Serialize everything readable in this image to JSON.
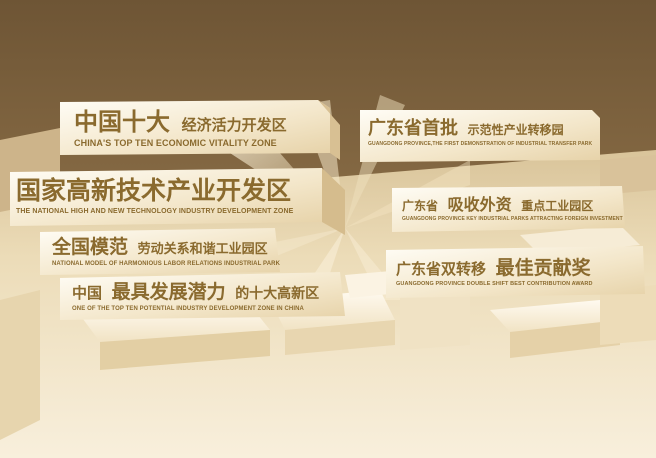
{
  "signs": [
    {
      "cn_big": "中国十大",
      "cn_small": "经济活力开发区",
      "en": "CHINA'S TOP TEN ECONOMIC VITALITY ZONE"
    },
    {
      "cn_big": "国家高新技术产业开发区",
      "cn_small": "",
      "en": "THE NATIONAL HIGH AND NEW TECHNOLOGY INDUSTRY DEVELOPMENT ZONE"
    },
    {
      "cn_big": "全国模范",
      "cn_small": "劳动关系和谐工业园区",
      "en": "NATIONAL MODEL OF HARMONIOUS LABOR RELATIONS INDUSTRIAL PARK"
    },
    {
      "cn_pre": "中国",
      "cn_big": "最具发展潜力",
      "cn_small": "的十大高新区",
      "en": "ONE OF THE TOP TEN POTENTIAL INDUSTRY DEVELOPMENT ZONE IN CHINA"
    },
    {
      "cn_big": "广东省首批",
      "cn_small": "示范性产业转移园",
      "en": "GUANGDONG PROVINCE,THE FIRST DEMONSTRATION OF INDUSTRIAL TRANSFER PARK"
    },
    {
      "cn_pre": "广东省",
      "cn_big": "吸收外资",
      "cn_small": "重点工业园区",
      "en": "GUANGDONG PROVINCE KEY INDUSTRIAL PARKS ATTRACTING FOREIGN INVESTMENT"
    },
    {
      "cn_pre": "广东省双转移",
      "cn_big": "最佳贡献奖",
      "cn_small": "",
      "en": "GUANGDONG PROVINCE DOUBLE SHIFT BEST CONTRIBUTION AWARD"
    }
  ],
  "colors": {
    "background_top": "#7a6240",
    "floor": "#efe2c4",
    "text": "#8a6a2e"
  }
}
